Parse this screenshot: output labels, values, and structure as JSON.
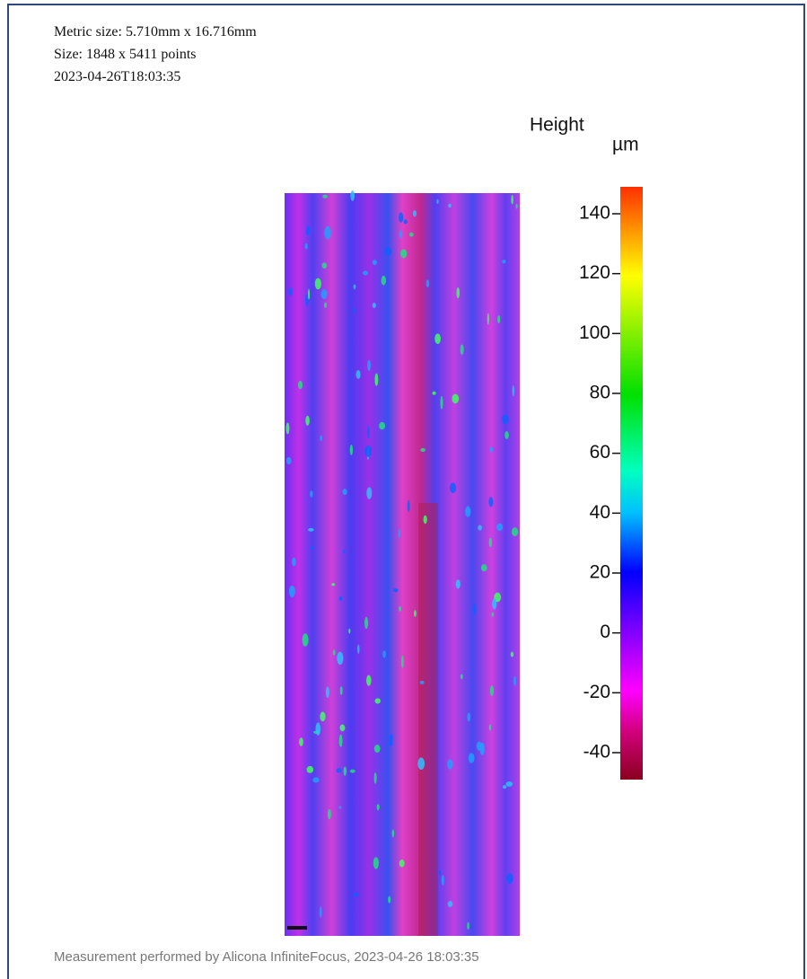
{
  "header": {
    "lines": [
      "Metric size: 5.710mm x 16.716mm",
      "Size: 1848 x 5411 points",
      "2023-04-26T18:03:35"
    ]
  },
  "colorbar": {
    "title": "Height",
    "unit": "µm",
    "lim": [
      -49,
      149
    ],
    "ticks": [
      140,
      120,
      100,
      80,
      60,
      40,
      20,
      0,
      -20,
      -40
    ]
  },
  "footer": "Measurement performed by Alicona InfiniteFocus, 2023-04-26 18:03:35"
}
